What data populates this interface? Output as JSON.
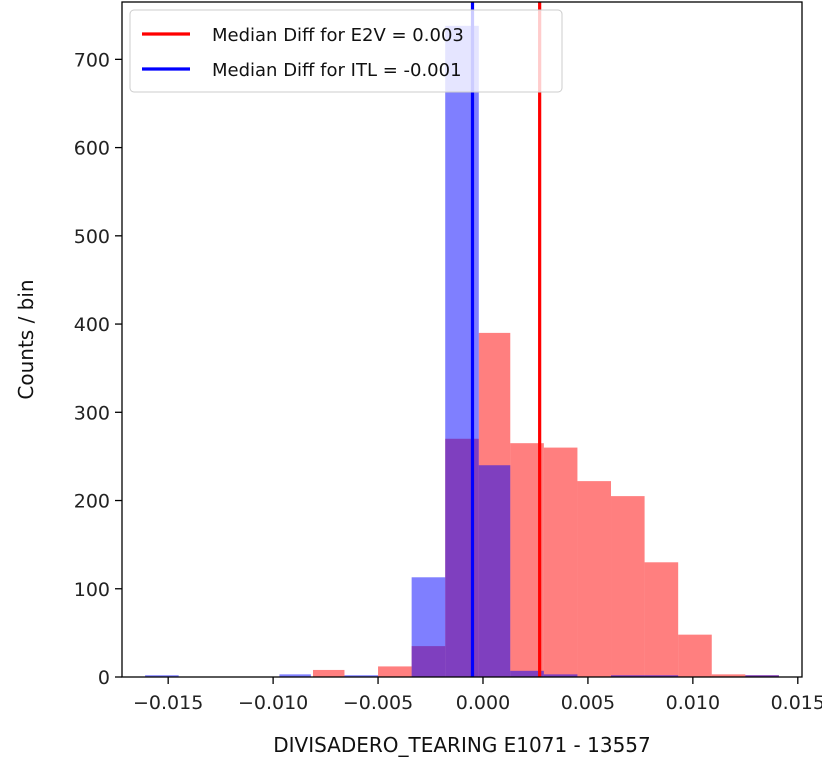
{
  "chart_data": {
    "type": "bar",
    "title": "",
    "xlabel": "DIVISADERO_TEARING E1071 - 13557",
    "ylabel": "Counts / bin",
    "xlim": [
      -0.0172,
      0.0152
    ],
    "ylim": [
      0,
      765
    ],
    "x_ticks": [
      -0.015,
      -0.01,
      -0.005,
      0.0,
      0.005,
      0.01,
      0.015
    ],
    "x_tick_labels": [
      "−0.015",
      "−0.010",
      "−0.005",
      "0.000",
      "0.005",
      "0.010",
      "0.015"
    ],
    "y_ticks": [
      0,
      100,
      200,
      300,
      400,
      500,
      600,
      700
    ],
    "y_tick_labels": [
      "0",
      "100",
      "200",
      "300",
      "400",
      "500",
      "600",
      "700"
    ],
    "grid": false,
    "legend_position": "top-left",
    "series": [
      {
        "name": "E2V",
        "color": "#ff0000",
        "alpha": 0.5,
        "bins": [
          [
            -0.0081,
            -0.0066,
            8
          ],
          [
            -0.005,
            -0.0034,
            12
          ],
          [
            -0.0034,
            -0.0018,
            35
          ],
          [
            -0.0018,
            -0.0002,
            270
          ],
          [
            -0.0002,
            0.0013,
            390
          ],
          [
            0.0013,
            0.0029,
            265
          ],
          [
            0.0029,
            0.0045,
            260
          ],
          [
            0.0045,
            0.0061,
            222
          ],
          [
            0.0061,
            0.0077,
            205
          ],
          [
            0.0077,
            0.0093,
            130
          ],
          [
            0.0093,
            0.0109,
            48
          ],
          [
            0.0109,
            0.0125,
            3
          ],
          [
            0.0125,
            0.0141,
            2
          ]
        ]
      },
      {
        "name": "ITL",
        "color": "#0000ff",
        "alpha": 0.5,
        "bins": [
          [
            -0.0161,
            -0.0145,
            2
          ],
          [
            -0.0097,
            -0.0082,
            3
          ],
          [
            -0.0066,
            -0.005,
            2
          ],
          [
            -0.0034,
            -0.0018,
            113
          ],
          [
            -0.0018,
            -0.0002,
            738
          ],
          [
            -0.0002,
            0.0013,
            240
          ],
          [
            0.0013,
            0.0029,
            7
          ],
          [
            0.0029,
            0.0045,
            3
          ],
          [
            0.0061,
            0.0077,
            2
          ],
          [
            0.0077,
            0.0093,
            2
          ],
          [
            0.0125,
            0.0141,
            2
          ]
        ]
      }
    ],
    "vlines": [
      {
        "x": 0.0027,
        "color": "#ff0000",
        "label": "Median Diff for E2V = 0.003"
      },
      {
        "x": -0.0005,
        "color": "#0000ff",
        "label": "Median Diff for ITL = -0.001"
      }
    ]
  }
}
